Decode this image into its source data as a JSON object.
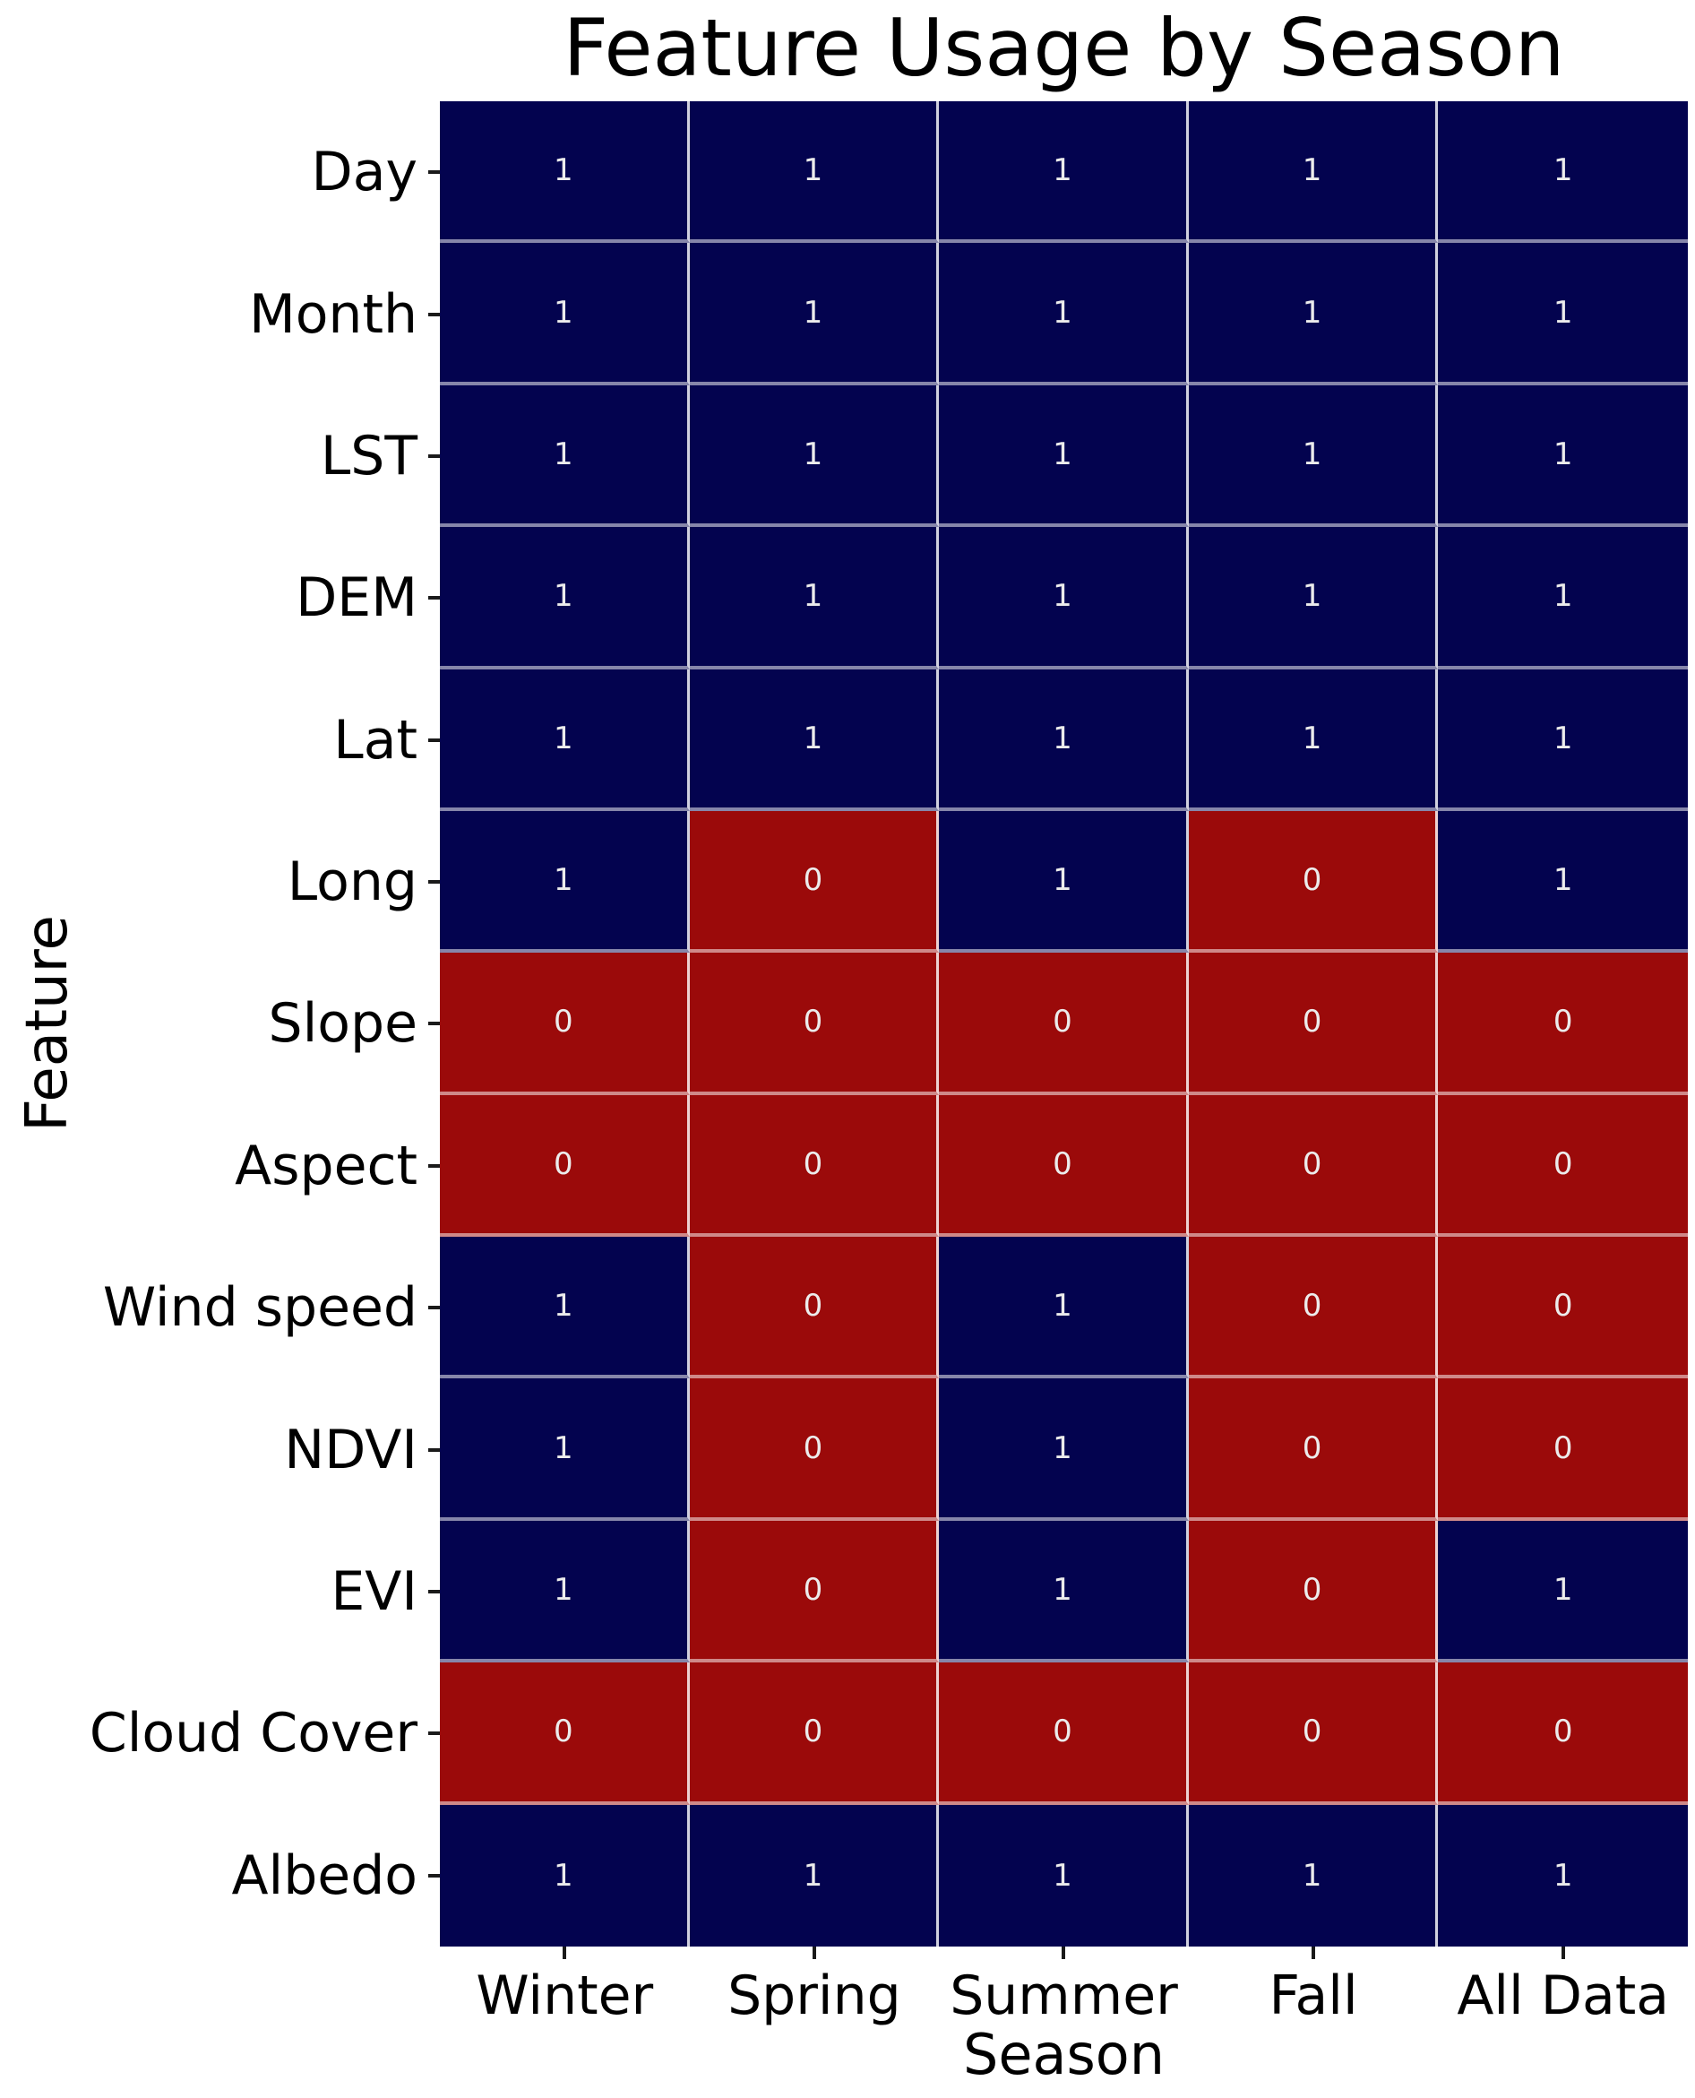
{
  "chart_data": {
    "type": "heatmap",
    "title": "Feature Usage by Season",
    "xlabel": "Season",
    "ylabel": "Feature",
    "columns": [
      "Winter",
      "Spring",
      "Summer",
      "Fall",
      "All Data"
    ],
    "rows": [
      "Day",
      "Month",
      "LST",
      "DEM",
      "Lat",
      "Long",
      "Slope",
      "Aspect",
      "Wind speed",
      "NDVI",
      "EVI",
      "Cloud Cover",
      "Albedo"
    ],
    "values": [
      [
        1,
        1,
        1,
        1,
        1
      ],
      [
        1,
        1,
        1,
        1,
        1
      ],
      [
        1,
        1,
        1,
        1,
        1
      ],
      [
        1,
        1,
        1,
        1,
        1
      ],
      [
        1,
        1,
        1,
        1,
        1
      ],
      [
        1,
        0,
        1,
        0,
        1
      ],
      [
        0,
        0,
        0,
        0,
        0
      ],
      [
        0,
        0,
        0,
        0,
        0
      ],
      [
        1,
        0,
        1,
        0,
        0
      ],
      [
        1,
        0,
        1,
        0,
        0
      ],
      [
        1,
        0,
        1,
        0,
        1
      ],
      [
        0,
        0,
        0,
        0,
        0
      ],
      [
        1,
        1,
        1,
        1,
        1
      ]
    ],
    "value_range": [
      0,
      1
    ],
    "cell_annotations": true,
    "legend": "none",
    "grid": "white cell borders",
    "colors": {
      "value_1": "#03034F",
      "value_0": "#9B0A0A",
      "cell_text": "#ECECEC",
      "label_text": "#000000",
      "background": "#FFFFFF"
    }
  }
}
